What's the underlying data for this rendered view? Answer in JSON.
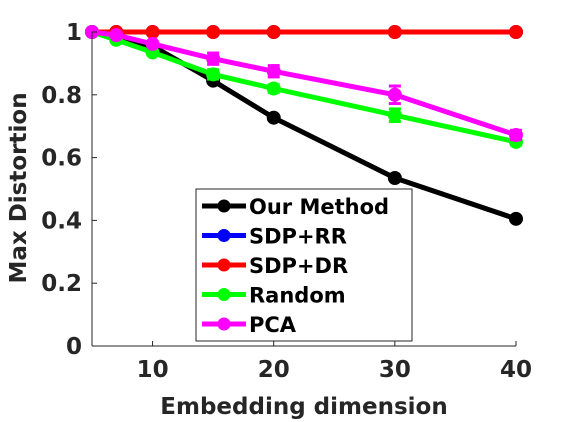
{
  "chart_data": {
    "type": "line",
    "xlabel": "Embedding dimension",
    "ylabel": "Max Distortion",
    "xlim": [
      5,
      40
    ],
    "ylim": [
      0,
      1
    ],
    "x_ticks": [
      "10",
      "20",
      "30",
      "40"
    ],
    "y_ticks": [
      "0",
      "0.2",
      "0.4",
      "0.6",
      "0.8",
      "1"
    ],
    "grid": false,
    "legend_position": "bottom-center",
    "x": [
      5,
      7,
      10,
      15,
      20,
      30,
      40
    ],
    "series": [
      {
        "name": "Our Method",
        "color": "#000000",
        "values": [
          1,
          0.98,
          0.955,
          0.845,
          0.727,
          0.535,
          0.405
        ]
      },
      {
        "name": "SDP+RR",
        "color": "#0000ff",
        "values": [
          1,
          1,
          1,
          1,
          1,
          1,
          1
        ]
      },
      {
        "name": "SDP+DR",
        "color": "#ff0000",
        "values": [
          1,
          1,
          1,
          1,
          1,
          1,
          1
        ]
      },
      {
        "name": "Random",
        "color": "#00ff00",
        "values": [
          1,
          0.975,
          0.935,
          0.865,
          0.82,
          0.735,
          0.65
        ]
      },
      {
        "name": "PCA",
        "color": "#ff00ff",
        "values": [
          1,
          0.99,
          0.962,
          0.915,
          0.875,
          0.8,
          0.672
        ]
      }
    ],
    "error_bars": [
      {
        "series": "PCA",
        "x": 15,
        "err": 0.018
      },
      {
        "series": "PCA",
        "x": 20,
        "err": 0.018
      },
      {
        "series": "PCA",
        "x": 30,
        "err": 0.028
      },
      {
        "series": "PCA",
        "x": 40,
        "err": 0.015
      },
      {
        "series": "Random",
        "x": 15,
        "err": 0.015
      },
      {
        "series": "Random",
        "x": 20,
        "err": 0.012
      },
      {
        "series": "Random",
        "x": 30,
        "err": 0.02
      },
      {
        "series": "Random",
        "x": 40,
        "err": 0.01
      }
    ]
  }
}
